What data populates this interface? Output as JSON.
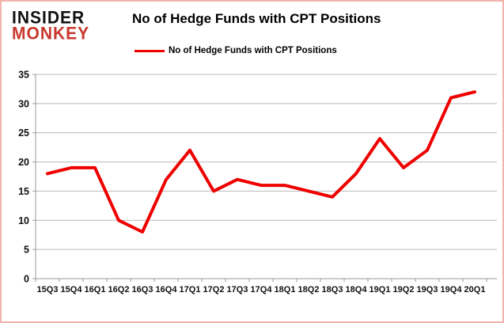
{
  "logo": {
    "line1": "INSIDER",
    "line2": "MONKEY"
  },
  "header": {
    "title": "No of Hedge Funds with CPT Positions"
  },
  "legend": {
    "label": "No of Hedge Funds with CPT Positions"
  },
  "colors": {
    "series_red": "#ee0000",
    "logo_red": "#c8372d",
    "gridline": "#b9b9b9",
    "axis": "#9a9a9a",
    "label_text": "#111111",
    "border_pink": "#f0b4ae"
  },
  "chart_data": {
    "type": "line",
    "title": "No of Hedge Funds with CPT Positions",
    "series_name": "No of Hedge Funds with CPT Positions",
    "categories": [
      "15Q3",
      "15Q4",
      "16Q1",
      "16Q2",
      "16Q3",
      "16Q4",
      "17Q1",
      "17Q2",
      "17Q3",
      "17Q4",
      "18Q1",
      "18Q2",
      "18Q3",
      "18Q4",
      "19Q1",
      "19Q2",
      "19Q3",
      "19Q4",
      "20Q1"
    ],
    "values": [
      18,
      19,
      19,
      10,
      8,
      17,
      22,
      15,
      17,
      16,
      16,
      15,
      14,
      18,
      24,
      19,
      22,
      31,
      32
    ],
    "xlabel": "",
    "ylabel": "",
    "ylim": [
      0,
      35
    ],
    "ytick_step": 5,
    "grid": true,
    "legend_position": "top-center",
    "line_color": "#ee0000",
    "line_width": 4
  }
}
